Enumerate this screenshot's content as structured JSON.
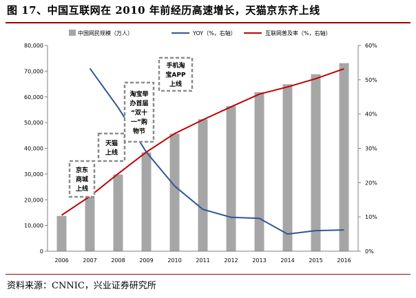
{
  "figure": {
    "title": "图 17、中国互联网在 2010 年前经历高速增长，天猫京东齐上线",
    "source": "资料来源：CNNIC，兴业证券研究所"
  },
  "chart_data": {
    "type": "bar",
    "categories": [
      "2006",
      "2007",
      "2008",
      "2009",
      "2010",
      "2011",
      "2012",
      "2013",
      "2014",
      "2015",
      "2016"
    ],
    "series": [
      {
        "name": "中国网民规模（万人）",
        "type": "bar",
        "axis": "left",
        "color": "#a6a6a6",
        "values": [
          13700,
          21000,
          29800,
          38400,
          45700,
          51300,
          56400,
          61800,
          64900,
          68800,
          73100
        ]
      },
      {
        "name": "YOY（%，右轴）",
        "type": "line",
        "axis": "right",
        "color": "#2f5597",
        "values": [
          null,
          53.3,
          41.9,
          28.9,
          19.0,
          12.2,
          9.9,
          9.6,
          5.0,
          6.0,
          6.2
        ]
      },
      {
        "name": "互联网普及率（%，右轴）",
        "type": "line",
        "axis": "right",
        "color": "#c00000",
        "values": [
          10.5,
          16.0,
          22.6,
          28.9,
          34.3,
          38.3,
          42.1,
          45.8,
          47.9,
          50.3,
          53.2
        ]
      }
    ],
    "left_axis": {
      "min": 0,
      "max": 80000,
      "ticks": [
        "0",
        "10,000",
        "20,000",
        "30,000",
        "40,000",
        "50,000",
        "60,000",
        "70,000",
        "80,000"
      ]
    },
    "right_axis": {
      "min": 0,
      "max": 60,
      "ticks": [
        "0%",
        "10%",
        "20%",
        "30%",
        "40%",
        "50%",
        "60%"
      ]
    },
    "grid": false,
    "legend_position": "top",
    "annotations": [
      {
        "lines": [
          "京东",
          "商城",
          "上线"
        ],
        "year": "2007"
      },
      {
        "lines": [
          "天猫",
          "上线"
        ],
        "year": "2008"
      },
      {
        "lines": [
          "淘宝举",
          "办首届",
          "“双十",
          "一”购",
          "物节"
        ],
        "year": "2009"
      },
      {
        "lines": [
          "手机淘",
          "宝APP",
          "上线"
        ],
        "year": "2010"
      }
    ]
  }
}
